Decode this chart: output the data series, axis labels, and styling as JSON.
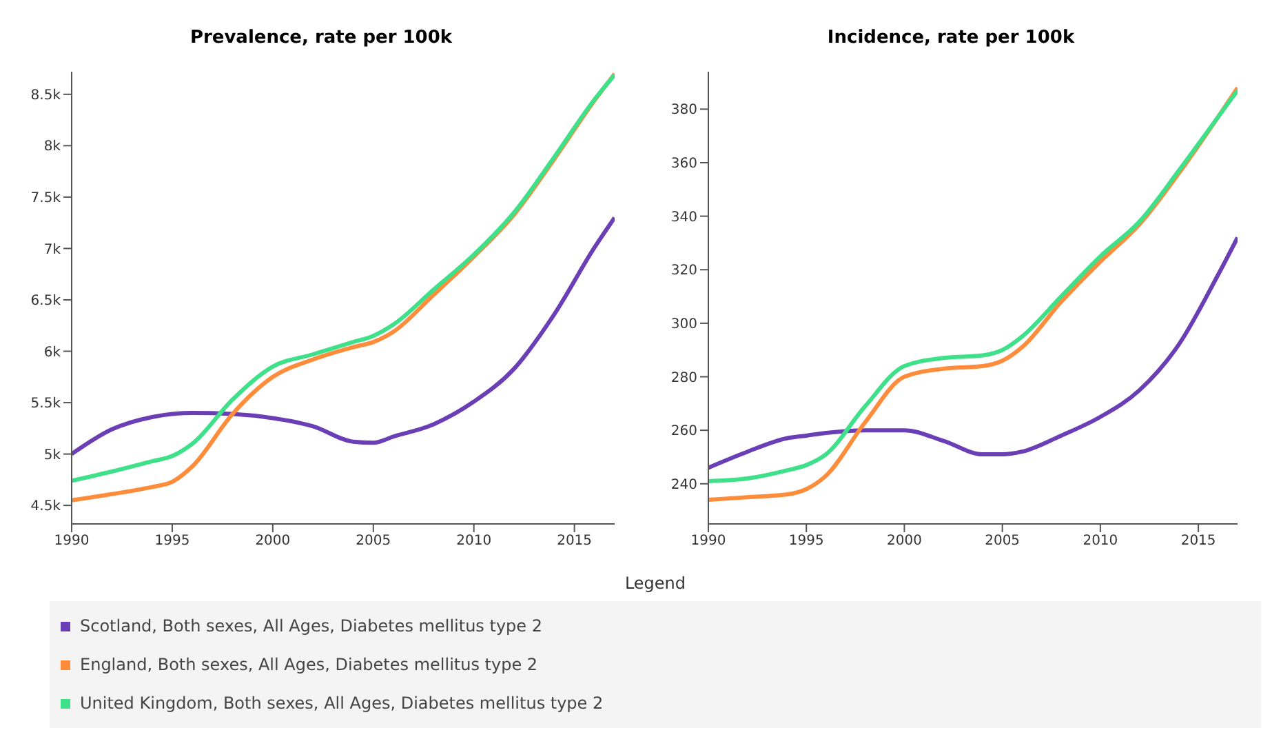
{
  "chart_data": [
    {
      "type": "line",
      "title": "Prevalence, rate per 100k",
      "x": [
        1990,
        1992,
        1994,
        1995,
        1996,
        1998,
        2000,
        2002,
        2004,
        2005,
        2006,
        2008,
        2010,
        2012,
        2014,
        2016,
        2017
      ],
      "xlim": [
        1990,
        2017
      ],
      "xticks": [
        1990,
        1995,
        2000,
        2005,
        2010,
        2015
      ],
      "ylim": [
        4320,
        8720
      ],
      "yticks": [
        {
          "value": 4500,
          "label": "4.5k"
        },
        {
          "value": 5000,
          "label": "5k"
        },
        {
          "value": 5500,
          "label": "5.5k"
        },
        {
          "value": 6000,
          "label": "6k"
        },
        {
          "value": 6500,
          "label": "6.5k"
        },
        {
          "value": 7000,
          "label": "7k"
        },
        {
          "value": 7500,
          "label": "7.5k"
        },
        {
          "value": 8000,
          "label": "8k"
        },
        {
          "value": 8500,
          "label": "8.5k"
        }
      ],
      "legend": "bottom",
      "legend_title": "Legend",
      "series": [
        {
          "name": "Scotland, Both sexes, All Ages, Diabetes mellitus type 2",
          "color": "#6a3fb5",
          "values": [
            5000,
            5240,
            5360,
            5390,
            5400,
            5390,
            5350,
            5270,
            5120,
            5110,
            5170,
            5290,
            5510,
            5830,
            6360,
            7010,
            7300
          ]
        },
        {
          "name": "England, Both sexes, All Ages, Diabetes mellitus type 2",
          "color": "#ff8c3a",
          "values": [
            4550,
            4610,
            4680,
            4730,
            4880,
            5390,
            5750,
            5920,
            6040,
            6090,
            6190,
            6550,
            6920,
            7330,
            7870,
            8440,
            8700
          ]
        },
        {
          "name": "United Kingdom, Both sexes, All Ages, Diabetes mellitus type 2",
          "color": "#3ee08a",
          "values": [
            4740,
            4830,
            4930,
            4980,
            5100,
            5530,
            5850,
            5970,
            6090,
            6150,
            6260,
            6600,
            6940,
            7350,
            7890,
            8450,
            8690
          ]
        }
      ]
    },
    {
      "type": "line",
      "title": "Incidence, rate per 100k",
      "x": [
        1990,
        1992,
        1994,
        1995,
        1996,
        1998,
        2000,
        2002,
        2004,
        2005,
        2006,
        2008,
        2010,
        2012,
        2014,
        2016,
        2017
      ],
      "xlim": [
        1990,
        2017
      ],
      "xticks": [
        1990,
        1995,
        2000,
        2005,
        2010,
        2015
      ],
      "ylim": [
        225,
        394
      ],
      "yticks": [
        240,
        260,
        280,
        300,
        320,
        340,
        360,
        380
      ],
      "series": [
        {
          "color": "#6a3fb5",
          "values": [
            246,
            252,
            257,
            258,
            259,
            260,
            260,
            256,
            251,
            251,
            252,
            258,
            265,
            275,
            292,
            318,
            332
          ]
        },
        {
          "color": "#ff8c3a",
          "values": [
            234,
            235,
            236,
            238,
            243,
            263,
            280,
            283,
            284,
            286,
            291,
            308,
            323,
            337,
            356,
            377,
            388
          ]
        },
        {
          "color": "#3ee08a",
          "values": [
            241,
            242,
            245,
            247,
            251,
            269,
            284,
            287,
            288,
            290,
            295,
            310,
            325,
            338,
            357,
            377,
            387
          ]
        }
      ]
    }
  ]
}
